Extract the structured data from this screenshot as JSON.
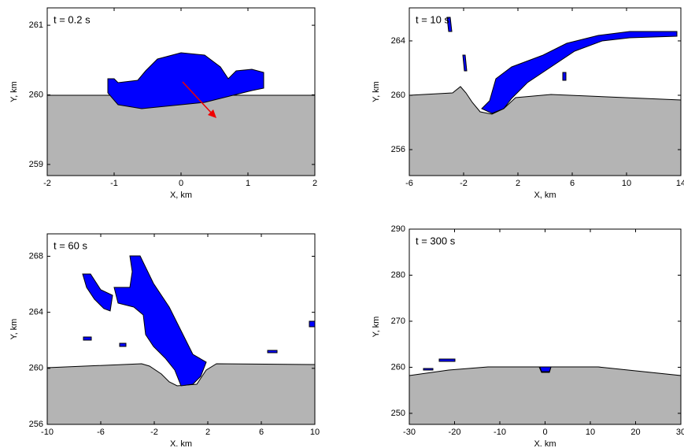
{
  "chart_data": [
    {
      "type": "snapshot",
      "annotation": "t = 0.2 s",
      "xlabel": "X, km",
      "ylabel": "Y, km",
      "xlim": [
        -2,
        2
      ],
      "ylim": [
        258.84,
        261.25
      ],
      "xticks": [
        -2,
        -1,
        0,
        1,
        2
      ],
      "yticks": [
        259,
        260,
        261
      ],
      "ejecta_color": "#0000ff",
      "ground_color": "#b4b4b4"
    },
    {
      "type": "snapshot",
      "annotation": "t = 10 s",
      "xlabel": "X, km",
      "ylabel": "Y, km",
      "xlim": [
        -6,
        14
      ],
      "ylim": [
        254.09,
        266.43
      ],
      "xticks": [
        -6,
        -2,
        2,
        6,
        10,
        14
      ],
      "yticks": [
        256,
        260,
        264
      ],
      "ejecta_color": "#0000ff",
      "ground_color": "#b4b4b4"
    },
    {
      "type": "snapshot",
      "annotation": "t = 60 s",
      "xlabel": "X. km",
      "ylabel": "Y, km",
      "xlim": [
        -10,
        10
      ],
      "ylim": [
        256,
        269.6
      ],
      "xticks": [
        -10,
        -6,
        -2,
        2,
        6,
        10
      ],
      "yticks": [
        256,
        260,
        264,
        268
      ],
      "ejecta_color": "#0000ff",
      "ground_color": "#b4b4b4"
    },
    {
      "type": "snapshot",
      "annotation": "t = 300 s",
      "xlabel": "X. km",
      "ylabel": "Y, km",
      "xlim": [
        -30,
        30
      ],
      "ylim": [
        247.6,
        290
      ],
      "xticks": [
        -30,
        -20,
        -10,
        0,
        10,
        20,
        30
      ],
      "yticks": [
        250,
        260,
        270,
        280,
        290
      ],
      "ejecta_color": "#0000ff",
      "ground_color": "#b4b4b4"
    }
  ]
}
